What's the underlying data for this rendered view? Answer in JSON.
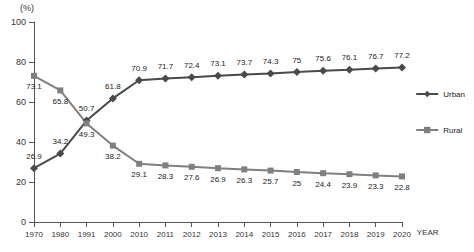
{
  "chart_data": {
    "type": "line",
    "y_label": "(%)",
    "x_label": "YEAR",
    "categories": [
      "1970",
      "1980",
      "1991",
      "2000",
      "2010",
      "2011",
      "2012",
      "2013",
      "2014",
      "2015",
      "2016",
      "2017",
      "2018",
      "2019",
      "2020"
    ],
    "series": [
      {
        "name": "Urban",
        "color": "#4a4a4a",
        "marker": "diamond",
        "values": [
          26.9,
          34.2,
          50.7,
          61.8,
          70.9,
          71.7,
          72.4,
          73.1,
          73.7,
          74.3,
          75,
          75.6,
          76.1,
          76.7,
          77.2
        ]
      },
      {
        "name": "Rural",
        "color": "#7f7f7f",
        "marker": "square",
        "values": [
          73.1,
          65.8,
          49.3,
          38.2,
          29.1,
          28.3,
          27.6,
          26.9,
          26.3,
          25.7,
          25,
          24.4,
          23.9,
          23.3,
          22.8
        ]
      }
    ],
    "ylim": [
      0,
      100
    ],
    "yticks": [
      0,
      20,
      40,
      60,
      80,
      100
    ],
    "grid": false,
    "legend": "right",
    "data_labels": true
  }
}
